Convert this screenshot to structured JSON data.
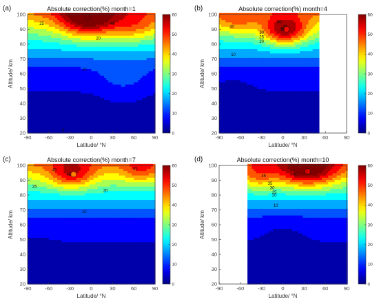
{
  "chart_data": [
    {
      "type": "heatmap",
      "panel_label": "(a)",
      "title": "Absolute correction(%)  month=1",
      "xlabel": "Latitude/ °N",
      "ylabel": "Altitude/ km",
      "xlim": [
        -90,
        90
      ],
      "ylim": [
        20,
        100
      ],
      "xticks": [
        -90,
        -60,
        -30,
        0,
        30,
        60,
        90
      ],
      "yticks": [
        20,
        30,
        40,
        50,
        60,
        70,
        80,
        90,
        100
      ],
      "colorbar": {
        "min": 0,
        "max": 60,
        "ticks": [
          0,
          10,
          20,
          30,
          40,
          50,
          60
        ]
      },
      "lat_range": [
        -90,
        90
      ],
      "peak": {
        "lat": -5,
        "alt": 98,
        "value": 60
      },
      "contour_labels": [
        {
          "text": "40",
          "lat": 30,
          "alt": 93
        },
        {
          "text": "25",
          "lat": -70,
          "alt": 93
        },
        {
          "text": "20",
          "lat": 10,
          "alt": 83
        },
        {
          "text": "10",
          "lat": -10,
          "alt": 62
        },
        {
          "text": "0",
          "lat": -40,
          "alt": 21
        }
      ]
    },
    {
      "type": "heatmap",
      "panel_label": "(b)",
      "title": "Absolute correction(%)  month=4",
      "xlabel": "Latitude/ °N",
      "ylabel": "Altitude/ km",
      "xlim": [
        -90,
        90
      ],
      "ylim": [
        20,
        100
      ],
      "xticks": [
        -90,
        -60,
        -30,
        0,
        30,
        60,
        90
      ],
      "yticks": [
        20,
        30,
        40,
        50,
        60,
        70,
        80,
        90,
        100
      ],
      "colorbar": {
        "min": 0,
        "max": 60,
        "ticks": [
          0,
          10,
          20,
          30,
          40,
          50,
          60
        ]
      },
      "lat_range": [
        -90,
        50
      ],
      "peak": {
        "lat": 5,
        "alt": 90,
        "value": 52
      },
      "contour_labels": [
        {
          "text": "40",
          "lat": -5,
          "alt": 94
        },
        {
          "text": "50",
          "lat": 0,
          "alt": 89
        },
        {
          "text": "40",
          "lat": -72,
          "alt": 91
        },
        {
          "text": "30",
          "lat": -30,
          "alt": 87
        },
        {
          "text": "25",
          "lat": -30,
          "alt": 84
        },
        {
          "text": "20",
          "lat": -30,
          "alt": 81
        },
        {
          "text": "10",
          "lat": -70,
          "alt": 72
        }
      ]
    },
    {
      "type": "heatmap",
      "panel_label": "(c)",
      "title": "Absolute correction(%)  month=7",
      "xlabel": "Latitude/ °N",
      "ylabel": "Altitude/ km",
      "xlim": [
        -90,
        90
      ],
      "ylim": [
        20,
        100
      ],
      "xticks": [
        -90,
        -60,
        -30,
        0,
        30,
        60,
        90
      ],
      "yticks": [
        20,
        30,
        40,
        50,
        60,
        70,
        80,
        90,
        100
      ],
      "colorbar": {
        "min": 0,
        "max": 60,
        "ticks": [
          0,
          10,
          20,
          30,
          40,
          50,
          60
        ]
      },
      "lat_range": [
        -90,
        90
      ],
      "peak": {
        "lat": -25,
        "alt": 94,
        "value": 45
      },
      "contour_labels": [
        {
          "text": "45",
          "lat": -32,
          "alt": 93
        },
        {
          "text": "45",
          "lat": -52,
          "alt": 96
        },
        {
          "text": "45",
          "lat": 62,
          "alt": 97
        },
        {
          "text": "25",
          "lat": -80,
          "alt": 85
        },
        {
          "text": "20",
          "lat": 20,
          "alt": 82
        },
        {
          "text": "10",
          "lat": -10,
          "alt": 68
        }
      ]
    },
    {
      "type": "heatmap",
      "panel_label": "(d)",
      "title": "Absolute correction(%)  month=10",
      "xlabel": "Latitude/ °N",
      "ylabel": "Altitude/ km",
      "xlim": [
        -90,
        90
      ],
      "ylim": [
        20,
        100
      ],
      "xticks": [
        -90,
        -60,
        -30,
        0,
        30,
        60,
        90
      ],
      "yticks": [
        20,
        30,
        40,
        50,
        60,
        70,
        80,
        90,
        100
      ],
      "colorbar": {
        "min": 0,
        "max": 60,
        "ticks": [
          0,
          10,
          20,
          30,
          40,
          50,
          60
        ]
      },
      "lat_range": [
        -50,
        90
      ],
      "peak": {
        "lat": 35,
        "alt": 96,
        "value": 55
      },
      "contour_labels": [
        {
          "text": "45",
          "lat": -27,
          "alt": 92
        },
        {
          "text": "40",
          "lat": 18,
          "alt": 93
        },
        {
          "text": "35",
          "lat": -18,
          "alt": 87
        },
        {
          "text": "30",
          "lat": -15,
          "alt": 84
        },
        {
          "text": "25",
          "lat": -12,
          "alt": 81
        },
        {
          "text": "20",
          "lat": -12,
          "alt": 79
        },
        {
          "text": "10",
          "lat": -10,
          "alt": 72
        }
      ]
    }
  ]
}
